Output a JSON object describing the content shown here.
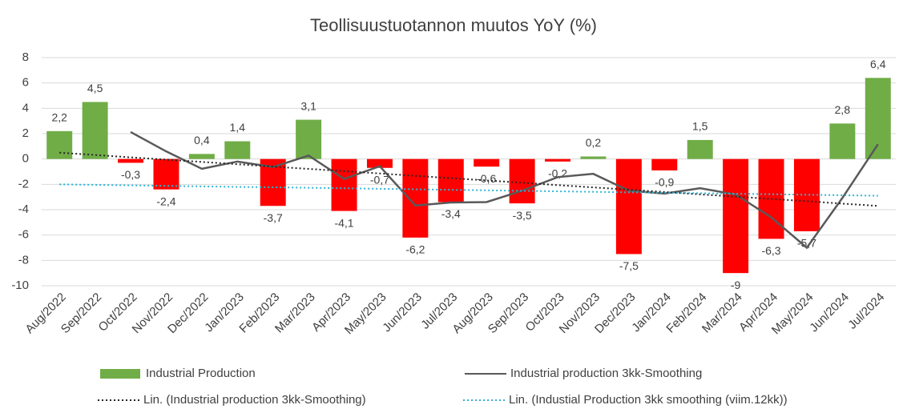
{
  "chart_data": {
    "type": "bar",
    "title": "Teollisuustuotannon muutos YoY (%)",
    "categories": [
      "Aug/2022",
      "Sep/2022",
      "Oct/2022",
      "Nov/2022",
      "Dec/2022",
      "Jan/2023",
      "Feb/2023",
      "Mar/2023",
      "Apr/2023",
      "May/2023",
      "Jun/2023",
      "Jul/2023",
      "Aug/2023",
      "Sep/2023",
      "Oct/2023",
      "Nov/2023",
      "Dec/2023",
      "Jan/2024",
      "Feb/2024",
      "Mar/2024",
      "Apr/2024",
      "May/2024",
      "Jun/2024",
      "Jul/2024"
    ],
    "series": [
      {
        "name": "Industrial Production",
        "type": "bar",
        "color": "#70ad47",
        "negative_color": "#ff0000",
        "values": [
          2.2,
          4.5,
          -0.3,
          -2.4,
          0.4,
          1.4,
          -3.7,
          3.1,
          -4.1,
          -0.7,
          -6.2,
          -3.4,
          -0.6,
          -3.5,
          -0.2,
          0.2,
          -7.5,
          -0.9,
          1.5,
          -9,
          -6.3,
          -5.7,
          2.8,
          6.4
        ],
        "value_labels": [
          "2,2",
          "4,5",
          "-0,3",
          "-2,4",
          "0,4",
          "1,4",
          "-3,7",
          "3,1",
          "-4,1",
          "-0,7",
          "-6,2",
          "-3,4",
          "-0,6",
          "-3,5",
          "-0,2",
          "0,2",
          "-7,5",
          "-0,9",
          "1,5",
          "-9",
          "-6,3",
          "-5,7",
          "2,8",
          "6,4"
        ]
      },
      {
        "name": "Industrial production 3kk-Smoothing",
        "type": "line",
        "color": "#595959",
        "dash": "solid",
        "values": [
          null,
          null,
          2.13,
          0.6,
          -0.77,
          -0.2,
          -0.63,
          0.27,
          -1.57,
          -0.57,
          -3.67,
          -3.43,
          -3.4,
          -2.5,
          -1.43,
          -1.17,
          -2.5,
          -2.73,
          -2.3,
          -2.8,
          -4.6,
          -7,
          -3.07,
          1.17
        ]
      },
      {
        "name": "Lin. (Industrial production 3kk-Smoothing)",
        "type": "line",
        "color": "#262626",
        "dash": "dotted",
        "values": [
          0.5,
          0.32,
          0.13,
          -0.05,
          -0.23,
          -0.41,
          -0.6,
          -0.78,
          -0.96,
          -1.14,
          -1.33,
          -1.51,
          -1.69,
          -1.87,
          -2.06,
          -2.24,
          -2.42,
          -2.6,
          -2.79,
          -2.97,
          -3.15,
          -3.33,
          -3.52,
          -3.7
        ]
      },
      {
        "name": "Lin. (Industial Production 3kk smoothing (viim.12kk))",
        "type": "line",
        "color": "#2eb4d4",
        "dash": "dotted",
        "values": [
          -2.0,
          -2.04,
          -2.08,
          -2.12,
          -2.16,
          -2.2,
          -2.23,
          -2.27,
          -2.31,
          -2.35,
          -2.39,
          -2.43,
          -2.47,
          -2.51,
          -2.55,
          -2.59,
          -2.63,
          -2.66,
          -2.7,
          -2.74,
          -2.78,
          -2.82,
          -2.86,
          -2.9
        ]
      }
    ],
    "ylim": [
      -10,
      8
    ],
    "yticks": [
      -10,
      -8,
      -6,
      -4,
      -2,
      0,
      2,
      4,
      6,
      8
    ],
    "grid": true,
    "legend": "bottom"
  }
}
